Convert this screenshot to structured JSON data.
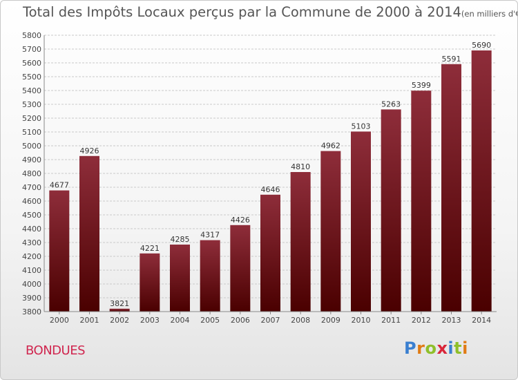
{
  "header": {
    "title": "Total des Impôts Locaux perçus par la Commune de 2000 à 2014",
    "unit": "(en milliers d'€)"
  },
  "commune": "BONDUES",
  "logo": {
    "parts": [
      "P",
      "r",
      "o",
      "x",
      "i",
      "t",
      "i"
    ]
  },
  "colors": {
    "bar_top": "#8e2d3a",
    "bar_bottom": "#4a0000",
    "commune": "#d0264f"
  },
  "chart_data": {
    "type": "bar",
    "title": "Total des Impôts Locaux perçus par la Commune de 2000 à 2014",
    "unit": "en milliers d'€",
    "xlabel": "",
    "ylabel": "",
    "categories": [
      "2000",
      "2001",
      "2002",
      "2003",
      "2004",
      "2005",
      "2006",
      "2007",
      "2008",
      "2009",
      "2010",
      "2011",
      "2012",
      "2013",
      "2014"
    ],
    "values": [
      4677,
      4926,
      3821,
      4221,
      4285,
      4317,
      4426,
      4646,
      4810,
      4962,
      5103,
      5263,
      5399,
      5591,
      5690
    ],
    "ylim": [
      3800,
      5800
    ],
    "yticks": [
      3800,
      3900,
      4000,
      4100,
      4200,
      4300,
      4400,
      4500,
      4600,
      4700,
      4800,
      4900,
      5000,
      5100,
      5200,
      5300,
      5400,
      5500,
      5600,
      5700,
      5800
    ],
    "grid": true
  }
}
